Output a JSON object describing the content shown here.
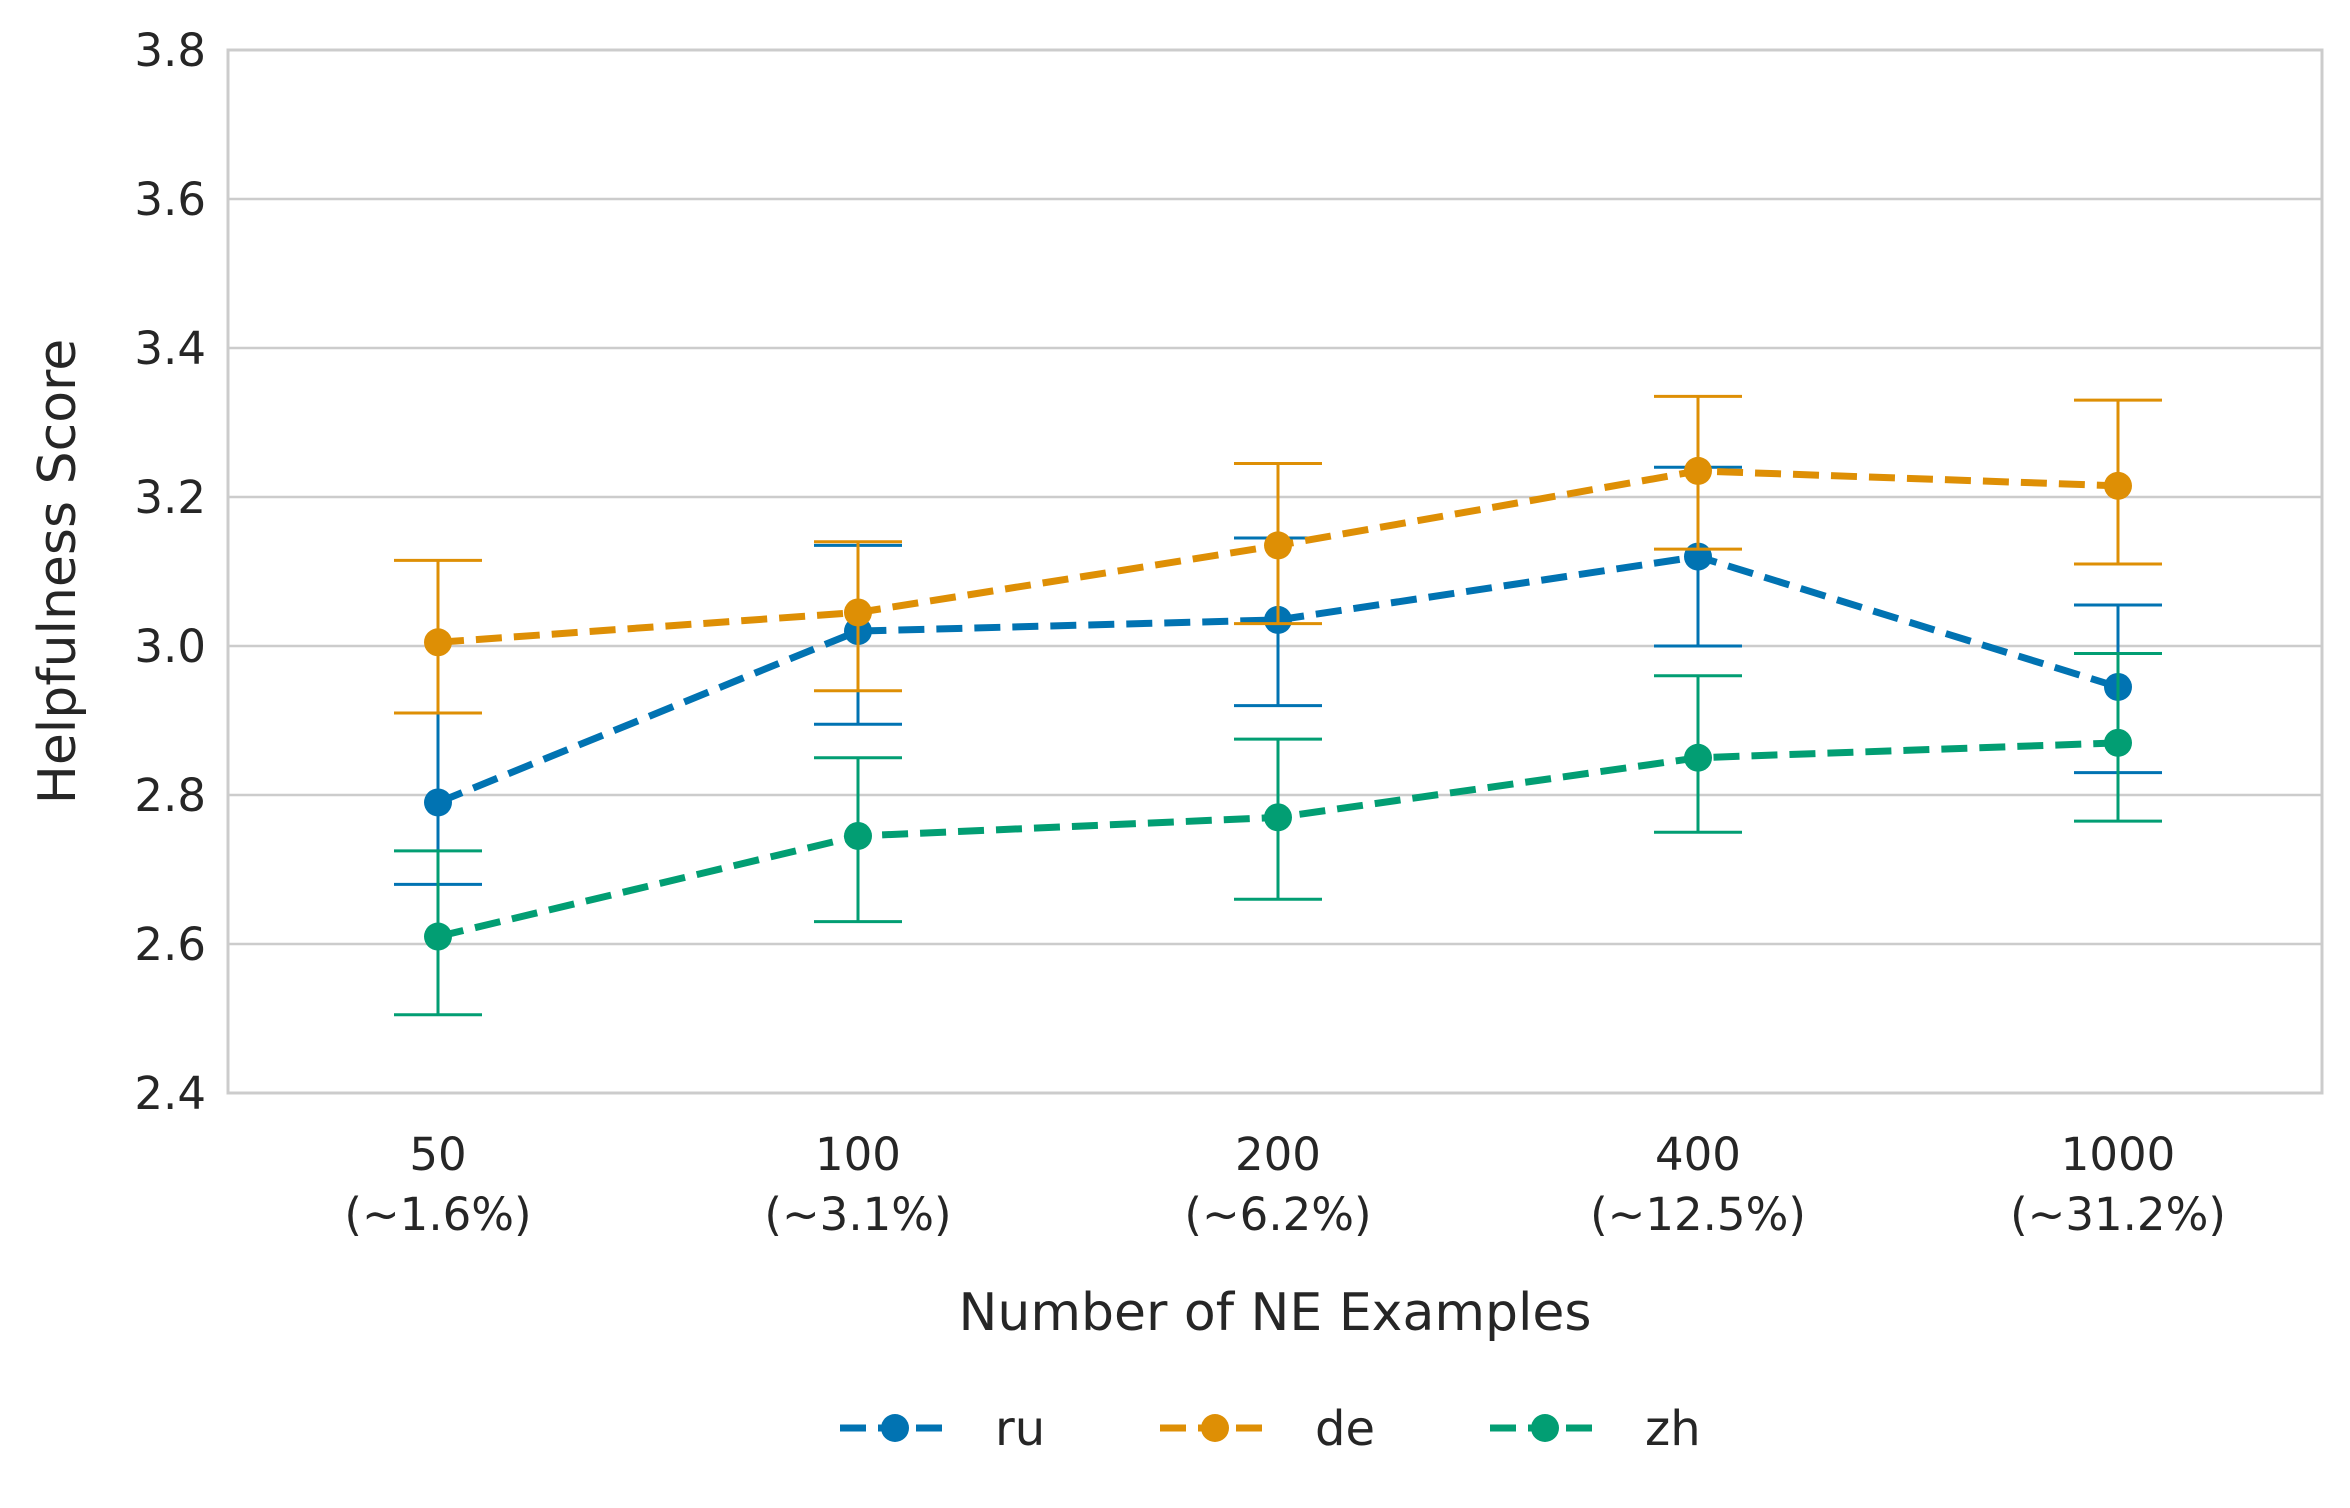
{
  "chart_data": {
    "type": "line",
    "title": "",
    "xlabel": "Number of NE Examples",
    "ylabel": "Helpfulness Score",
    "ylim": [
      2.4,
      3.8
    ],
    "yticks": [
      "2.4",
      "2.6",
      "2.8",
      "3.0",
      "3.2",
      "3.4",
      "3.6",
      "3.8"
    ],
    "categories": [
      {
        "value": "50",
        "pct": "(~1.6%)"
      },
      {
        "value": "100",
        "pct": "(~3.1%)"
      },
      {
        "value": "200",
        "pct": "(~6.2%)"
      },
      {
        "value": "400",
        "pct": "(~12.5%)"
      },
      {
        "value": "1000",
        "pct": "(~31.2%)"
      }
    ],
    "grid": "horizontal",
    "legend_position": "bottom-center",
    "series": [
      {
        "name": "ru",
        "color": "#0173b2",
        "values": [
          2.79,
          3.02,
          3.035,
          3.12,
          2.945
        ],
        "err_low": [
          2.68,
          2.895,
          2.92,
          3.0,
          2.83
        ],
        "err_high": [
          2.91,
          3.135,
          3.145,
          3.24,
          3.055
        ]
      },
      {
        "name": "de",
        "color": "#de8f05",
        "values": [
          3.005,
          3.045,
          3.135,
          3.235,
          3.215
        ],
        "err_low": [
          2.91,
          2.94,
          3.03,
          3.13,
          3.11
        ],
        "err_high": [
          3.115,
          3.14,
          3.245,
          3.335,
          3.33
        ]
      },
      {
        "name": "zh",
        "color": "#029e73",
        "values": [
          2.61,
          2.745,
          2.77,
          2.85,
          2.87
        ],
        "err_low": [
          2.505,
          2.63,
          2.66,
          2.75,
          2.765
        ],
        "err_high": [
          2.725,
          2.85,
          2.875,
          2.96,
          2.99
        ]
      }
    ]
  }
}
